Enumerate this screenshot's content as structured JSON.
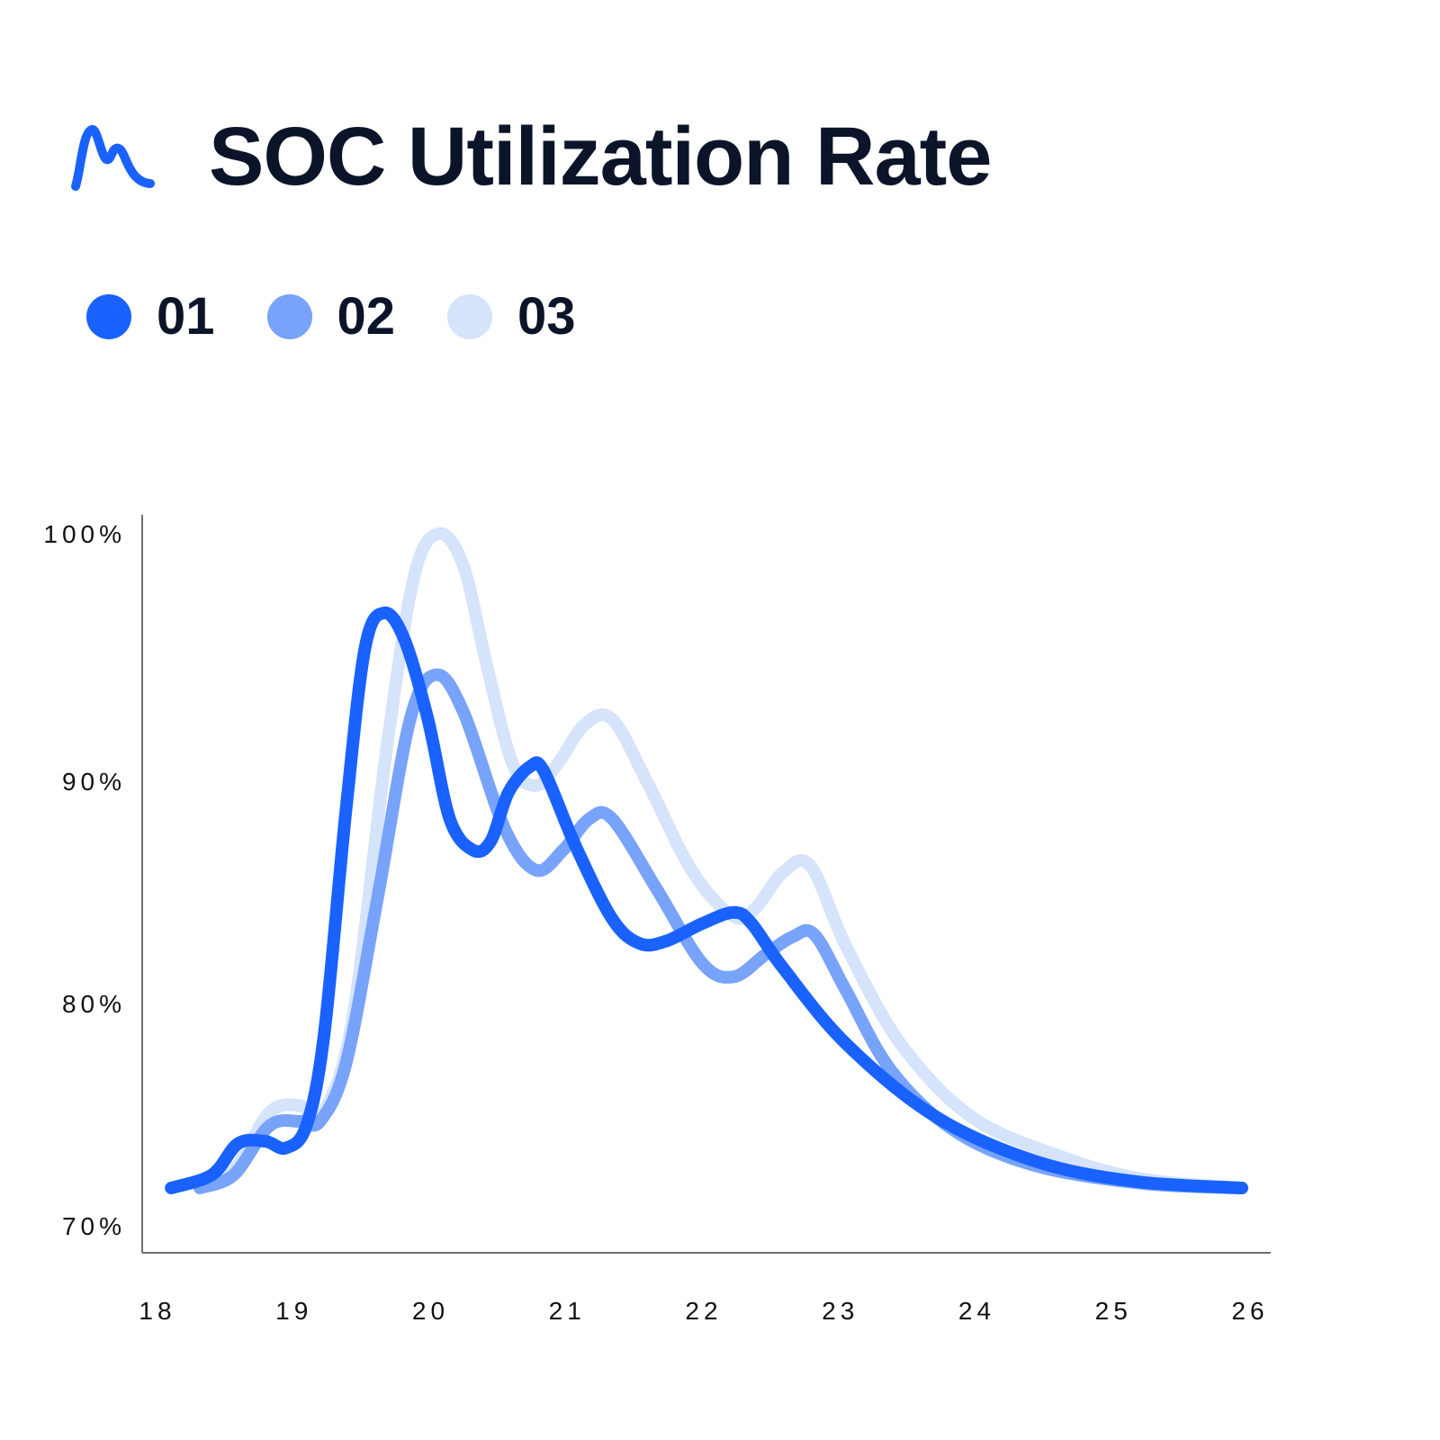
{
  "header": {
    "logo_icon": "wave-m-logo-icon",
    "title": "SOC Utilization Rate"
  },
  "legend": [
    {
      "label": "01",
      "color": "#1a62ff"
    },
    {
      "label": "02",
      "color": "#78a3fa"
    },
    {
      "label": "03",
      "color": "#d5e3fb"
    }
  ],
  "chart_data": {
    "type": "line",
    "title": "SOC Utilization Rate",
    "xlabel": "",
    "ylabel": "",
    "xlim": [
      18,
      26
    ],
    "ylim": [
      70,
      100
    ],
    "x_ticks": [
      "18",
      "19",
      "20",
      "21",
      "22",
      "23",
      "24",
      "25",
      "26"
    ],
    "y_ticks": [
      "70%",
      "80%",
      "90%",
      "100%"
    ],
    "grid": false,
    "legend_placement": "top-left",
    "series": [
      {
        "name": "01",
        "color": "#1a62ff",
        "points": [
          [
            18.1,
            71.7
          ],
          [
            18.4,
            72.3
          ],
          [
            18.59,
            73.7
          ],
          [
            18.79,
            73.8
          ],
          [
            18.94,
            73.5
          ],
          [
            19.09,
            74.5
          ],
          [
            19.22,
            78.6
          ],
          [
            19.38,
            88.7
          ],
          [
            19.52,
            95.4
          ],
          [
            19.66,
            96.8
          ],
          [
            19.81,
            95.7
          ],
          [
            19.98,
            92.5
          ],
          [
            20.14,
            88.3
          ],
          [
            20.31,
            86.9
          ],
          [
            20.44,
            87.3
          ],
          [
            20.57,
            89.5
          ],
          [
            20.73,
            90.6
          ],
          [
            20.83,
            90.4
          ],
          [
            21.06,
            87.1
          ],
          [
            21.33,
            83.8
          ],
          [
            21.53,
            82.7
          ],
          [
            21.72,
            82.8
          ],
          [
            21.99,
            83.6
          ],
          [
            22.22,
            84.1
          ],
          [
            22.35,
            83.6
          ],
          [
            22.58,
            81.6
          ],
          [
            23.04,
            78.2
          ],
          [
            23.7,
            74.9
          ],
          [
            24.43,
            72.9
          ],
          [
            25.15,
            72.0
          ],
          [
            25.94,
            71.7
          ]
        ]
      },
      {
        "name": "02",
        "color": "#78a3fa",
        "points": [
          [
            18.31,
            71.7
          ],
          [
            18.56,
            72.3
          ],
          [
            18.82,
            74.5
          ],
          [
            19.05,
            74.7
          ],
          [
            19.19,
            74.7
          ],
          [
            19.38,
            77.3
          ],
          [
            19.61,
            84.7
          ],
          [
            19.85,
            92.5
          ],
          [
            20.04,
            94.3
          ],
          [
            20.24,
            92.8
          ],
          [
            20.54,
            87.9
          ],
          [
            20.77,
            86.0
          ],
          [
            20.97,
            86.9
          ],
          [
            21.16,
            88.3
          ],
          [
            21.33,
            88.3
          ],
          [
            21.66,
            85.1
          ],
          [
            21.99,
            81.8
          ],
          [
            22.22,
            81.2
          ],
          [
            22.45,
            82.2
          ],
          [
            22.65,
            83.0
          ],
          [
            22.81,
            83.1
          ],
          [
            23.04,
            80.6
          ],
          [
            23.37,
            77.0
          ],
          [
            23.83,
            74.3
          ],
          [
            24.43,
            72.7
          ],
          [
            25.22,
            71.9
          ],
          [
            25.94,
            71.7
          ]
        ]
      },
      {
        "name": "03",
        "color": "#d5e3fb",
        "points": [
          [
            18.31,
            71.7
          ],
          [
            18.56,
            72.5
          ],
          [
            18.82,
            75.1
          ],
          [
            19.05,
            75.4
          ],
          [
            19.19,
            74.9
          ],
          [
            19.42,
            79.0
          ],
          [
            19.68,
            91.4
          ],
          [
            19.88,
            98.3
          ],
          [
            20.06,
            100.0
          ],
          [
            20.24,
            98.7
          ],
          [
            20.41,
            94.7
          ],
          [
            20.6,
            90.7
          ],
          [
            20.77,
            89.8
          ],
          [
            20.93,
            90.7
          ],
          [
            21.13,
            92.3
          ],
          [
            21.33,
            92.5
          ],
          [
            21.59,
            89.9
          ],
          [
            21.92,
            85.9
          ],
          [
            22.22,
            83.9
          ],
          [
            22.38,
            84.3
          ],
          [
            22.58,
            85.9
          ],
          [
            22.78,
            86.2
          ],
          [
            23.04,
            82.6
          ],
          [
            23.44,
            78.2
          ],
          [
            23.96,
            74.9
          ],
          [
            24.62,
            73.1
          ],
          [
            25.22,
            72.1
          ],
          [
            25.94,
            71.7
          ]
        ]
      }
    ]
  }
}
